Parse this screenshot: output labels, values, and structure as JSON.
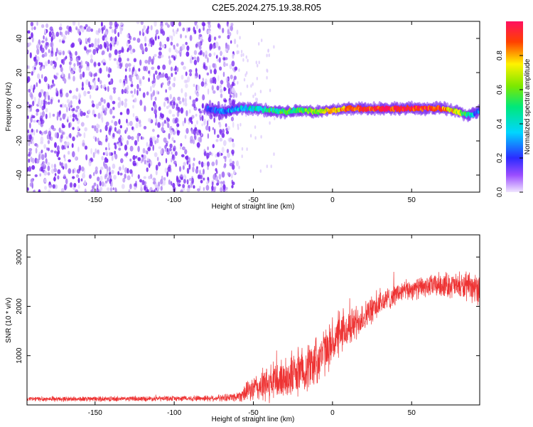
{
  "figure_title": "C2E5.2024.275.19.38.R05",
  "chart_data": [
    {
      "type": "heatmap",
      "title": "C2E5.2024.275.19.38.R05",
      "xlabel": "Height of straight line (km)",
      "ylabel": "Frequency (Hz)",
      "xlim": [
        -193,
        93
      ],
      "ylim": [
        -50,
        50
      ],
      "xticks": [
        -150,
        -100,
        -50,
        0,
        50
      ],
      "yticks": [
        -40,
        -20,
        0,
        20,
        40
      ],
      "colorbar": {
        "label": "Normalized spectral amplitude",
        "range": [
          0,
          1
        ],
        "ticks": [
          0.0,
          0.2,
          0.4,
          0.6,
          0.8
        ],
        "colormap": "rainbow (magenta-blue-cyan-green-yellow-red)"
      },
      "noise_region": {
        "x": [
          -193,
          -60
        ],
        "freq": [
          -50,
          50
        ],
        "amplitude": 0.1
      },
      "signal_trace": {
        "x": [
          -80,
          -70,
          -60,
          -50,
          -40,
          -30,
          -20,
          -10,
          0,
          10,
          20,
          30,
          40,
          50,
          60,
          70,
          80,
          85,
          90,
          93
        ],
        "freq": [
          -1,
          -3,
          -1,
          -1,
          -2,
          -3,
          -2,
          -3,
          -2,
          -1,
          -1,
          -1,
          -1,
          -1,
          -1,
          -1,
          -3,
          -5,
          -4,
          -2
        ],
        "amplitude": [
          0.15,
          0.25,
          0.35,
          0.4,
          0.45,
          0.5,
          0.55,
          0.65,
          0.75,
          0.85,
          0.9,
          0.95,
          0.95,
          0.95,
          0.9,
          0.85,
          0.65,
          0.45,
          0.3,
          0.2
        ]
      }
    },
    {
      "type": "line",
      "xlabel": "Height of straight line (km)",
      "ylabel": "SNR (10 * v/v)",
      "xlim": [
        -193,
        93
      ],
      "ylim": [
        0,
        3450
      ],
      "xticks": [
        -150,
        -100,
        -50,
        0,
        50
      ],
      "yticks": [
        1000,
        2000,
        3000
      ],
      "color": "#ee3333",
      "series": [
        {
          "x": [
            -193,
            -150,
            -100,
            -70,
            -60,
            -50,
            -40,
            -30,
            -20,
            -10,
            0,
            10,
            20,
            30,
            40,
            50,
            60,
            70,
            80,
            93
          ],
          "y": [
            120,
            120,
            130,
            140,
            170,
            330,
            420,
            550,
            680,
            900,
            1250,
            1550,
            1800,
            2050,
            2250,
            2350,
            2400,
            2450,
            2400,
            2350
          ],
          "noise": [
            60,
            60,
            60,
            80,
            120,
            300,
            450,
            500,
            550,
            600,
            500,
            450,
            350,
            300,
            250,
            250,
            250,
            300,
            300,
            350
          ]
        }
      ]
    }
  ]
}
